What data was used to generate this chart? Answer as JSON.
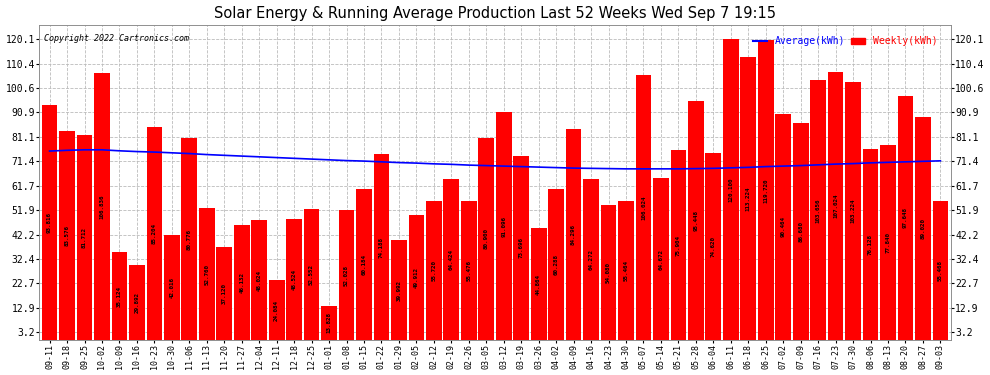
{
  "title": "Solar Energy & Running Average Production Last 52 Weeks Wed Sep 7 19:15",
  "copyright": "Copyright 2022 Cartronics.com",
  "legend_avg": "Average(kWh)",
  "legend_weekly": "Weekly(kWh)",
  "bar_color": "#ff0000",
  "avg_line_color": "#0000ff",
  "background_color": "#ffffff",
  "plot_bg_color": "#ffffff",
  "ylim": [
    0,
    126
  ],
  "yticks": [
    3.2,
    12.9,
    22.7,
    32.4,
    42.2,
    51.9,
    61.7,
    71.4,
    81.1,
    90.9,
    100.6,
    110.4,
    120.1
  ],
  "categories": [
    "09-11",
    "09-18",
    "09-25",
    "10-02",
    "10-09",
    "10-16",
    "10-23",
    "10-30",
    "11-06",
    "11-13",
    "11-20",
    "11-27",
    "12-04",
    "12-11",
    "12-18",
    "12-25",
    "01-01",
    "01-08",
    "01-15",
    "01-22",
    "01-29",
    "02-05",
    "02-12",
    "02-19",
    "02-26",
    "03-05",
    "03-12",
    "03-19",
    "03-26",
    "04-02",
    "04-09",
    "04-16",
    "04-23",
    "04-30",
    "05-07",
    "05-14",
    "05-21",
    "05-28",
    "06-04",
    "06-11",
    "06-18",
    "06-25",
    "07-02",
    "07-09",
    "07-16",
    "07-23",
    "07-30",
    "08-06",
    "08-13",
    "08-20",
    "08-27",
    "09-03"
  ],
  "values": [
    93.816,
    83.576,
    81.712,
    106.836,
    35.124,
    29.892,
    85.204,
    42.016,
    80.776,
    52.76,
    37.12,
    46.132,
    48.024,
    24.084,
    48.524,
    52.552,
    13.828,
    52.028,
    60.184,
    74.188,
    39.992,
    49.912,
    55.72,
    64.424,
    55.476,
    80.9,
    91.096,
    73.696,
    44.864,
    60.288,
    84.296,
    64.272,
    54.08,
    55.464,
    106.024,
    64.672,
    75.904,
    95.448,
    74.62,
    120.1,
    113.224,
    119.72,
    90.464,
    86.68,
    103.656,
    107.024,
    103.224,
    76.128,
    77.84,
    97.648,
    89.02,
    55.468
  ],
  "avg_values": [
    75.5,
    75.8,
    76.0,
    76.0,
    75.6,
    75.3,
    75.1,
    74.8,
    74.5,
    74.1,
    73.8,
    73.5,
    73.2,
    72.9,
    72.6,
    72.3,
    72.0,
    71.7,
    71.5,
    71.2,
    70.9,
    70.7,
    70.4,
    70.2,
    69.9,
    69.7,
    69.5,
    69.3,
    69.1,
    68.9,
    68.7,
    68.6,
    68.5,
    68.4,
    68.4,
    68.4,
    68.4,
    68.5,
    68.6,
    68.8,
    69.0,
    69.3,
    69.5,
    69.7,
    70.0,
    70.3,
    70.5,
    70.8,
    71.0,
    71.2,
    71.4,
    71.6
  ]
}
